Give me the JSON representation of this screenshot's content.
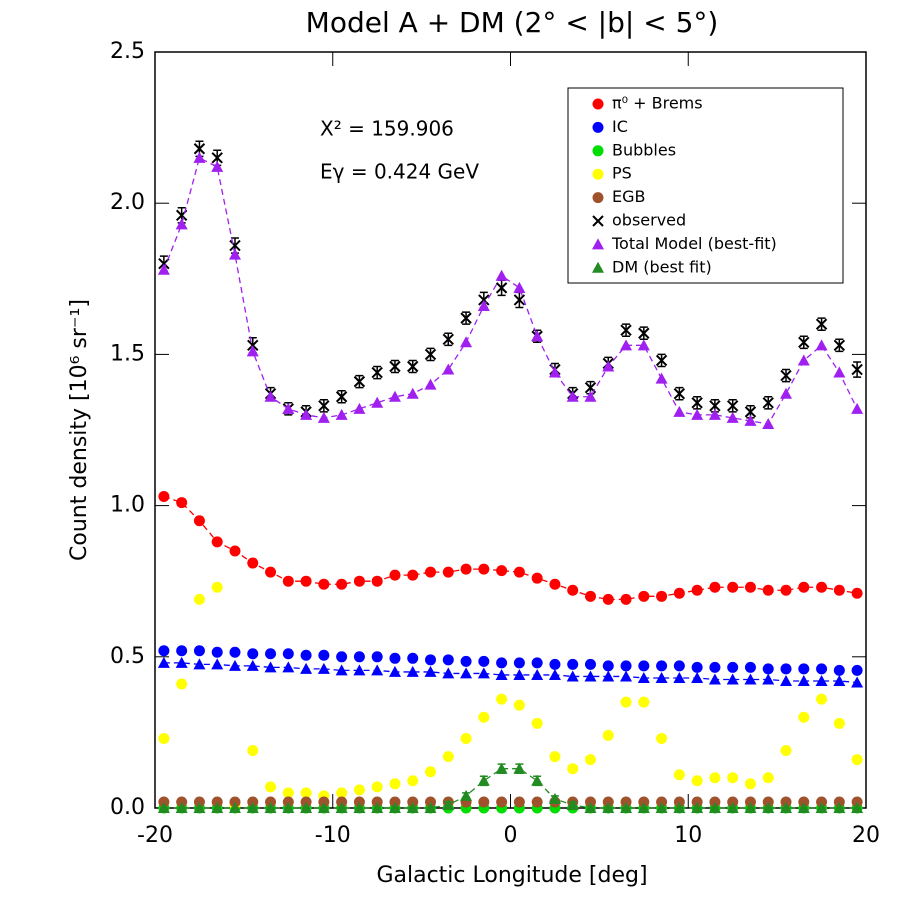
{
  "chart_data": {
    "type": "scatter",
    "title": "Model A + DM (2° < |b| < 5°)",
    "x_label": "Galactic Longitude [deg]",
    "y_label": "Count density  [10⁶ sr⁻¹]",
    "annotations": [
      "X² = 159.906",
      "Eγ = 0.424 GeV"
    ],
    "xlim": [
      -20,
      20
    ],
    "ylim": [
      0,
      2.5
    ],
    "xticks": [
      -20,
      -10,
      0,
      10,
      20
    ],
    "yticks": [
      {
        "value": 0,
        "label": "0.0"
      },
      0.5,
      {
        "value": 1,
        "label": "1.0"
      },
      1.5,
      {
        "value": 2,
        "label": "2.0"
      },
      2.5
    ],
    "legend": "upper right",
    "x": [
      -19.5,
      -18.5,
      -17.5,
      -16.5,
      -15.5,
      -14.5,
      -13.5,
      -12.5,
      -11.5,
      -10.5,
      -9.5,
      -8.5,
      -7.5,
      -6.5,
      -5.5,
      -4.5,
      -3.5,
      -2.5,
      -1.5,
      -0.5,
      0.5,
      1.5,
      2.5,
      3.5,
      4.5,
      5.5,
      6.5,
      7.5,
      8.5,
      9.5,
      10.5,
      11.5,
      12.5,
      13.5,
      14.5,
      15.5,
      16.5,
      17.5,
      18.5,
      19.5
    ],
    "series": [
      {
        "name": "π⁰ + Brems",
        "color": "#ff0000",
        "marker": "circle",
        "line": "dashed",
        "values": [
          1.03,
          1.01,
          0.95,
          0.88,
          0.85,
          0.81,
          0.78,
          0.75,
          0.75,
          0.74,
          0.74,
          0.75,
          0.75,
          0.77,
          0.77,
          0.78,
          0.78,
          0.79,
          0.79,
          0.785,
          0.78,
          0.76,
          0.74,
          0.72,
          0.7,
          0.69,
          0.69,
          0.7,
          0.7,
          0.71,
          0.72,
          0.73,
          0.73,
          0.73,
          0.72,
          0.72,
          0.73,
          0.73,
          0.72,
          0.71
        ],
        "errors": [
          0.01,
          0.01,
          0.01,
          0.01,
          0.01,
          0.01,
          0.01,
          0.01,
          0.01,
          0.01,
          0.01,
          0.01,
          0.01,
          0.01,
          0.01,
          0.01,
          0.01,
          0.01,
          0.01,
          0.01,
          0.01,
          0.01,
          0.01,
          0.01,
          0.01,
          0.01,
          0.01,
          0.01,
          0.01,
          0.01,
          0.01,
          0.01,
          0.01,
          0.01,
          0.01,
          0.01,
          0.01,
          0.01,
          0.01,
          0.01
        ]
      },
      {
        "name": "IC",
        "color": "#0000ff",
        "marker": "circle",
        "values": [
          0.52,
          0.52,
          0.52,
          0.515,
          0.515,
          0.51,
          0.51,
          0.51,
          0.505,
          0.505,
          0.5,
          0.5,
          0.5,
          0.495,
          0.495,
          0.49,
          0.49,
          0.485,
          0.485,
          0.48,
          0.48,
          0.48,
          0.475,
          0.475,
          0.475,
          0.47,
          0.47,
          0.47,
          0.47,
          0.47,
          0.465,
          0.465,
          0.465,
          0.465,
          0.46,
          0.46,
          0.46,
          0.46,
          0.455,
          0.455
        ]
      },
      {
        "color": "#0000ff",
        "marker": "triangle",
        "line": "dashed",
        "values": [
          0.48,
          0.48,
          0.475,
          0.475,
          0.47,
          0.47,
          0.465,
          0.465,
          0.46,
          0.46,
          0.455,
          0.455,
          0.455,
          0.45,
          0.45,
          0.45,
          0.445,
          0.445,
          0.445,
          0.44,
          0.44,
          0.44,
          0.44,
          0.435,
          0.435,
          0.435,
          0.435,
          0.43,
          0.43,
          0.43,
          0.43,
          0.425,
          0.425,
          0.425,
          0.425,
          0.42,
          0.42,
          0.42,
          0.42,
          0.415
        ]
      },
      {
        "name": "Bubbles",
        "color": "#00dd00",
        "marker": "circle",
        "values": [
          0,
          0,
          0,
          0,
          0,
          0,
          0,
          0,
          0,
          0,
          0,
          0,
          0,
          0,
          0,
          0,
          0,
          0,
          0,
          0,
          0,
          0,
          0,
          0,
          0,
          0,
          0,
          0,
          0,
          0,
          0,
          0,
          0,
          0,
          0,
          0,
          0,
          0,
          0,
          0
        ]
      },
      {
        "name": "PS",
        "color": "#ffff00",
        "marker": "circle",
        "values": [
          0.23,
          0.41,
          0.69,
          0.73,
          0.01,
          0.19,
          0.07,
          0.05,
          0.05,
          0.04,
          0.05,
          0.06,
          0.07,
          0.08,
          0.09,
          0.12,
          0.17,
          0.23,
          0.3,
          0.36,
          0.34,
          0.28,
          0.17,
          0.13,
          0.16,
          0.24,
          0.35,
          0.35,
          0.23,
          0.11,
          0.09,
          0.1,
          0.1,
          0.08,
          0.1,
          0.19,
          0.3,
          0.36,
          0.28,
          0.16
        ]
      },
      {
        "name": "EGB",
        "color": "#a0522d",
        "marker": "circle",
        "values": [
          0.02,
          0.02,
          0.02,
          0.02,
          0.02,
          0.02,
          0.02,
          0.02,
          0.02,
          0.02,
          0.02,
          0.02,
          0.02,
          0.02,
          0.02,
          0.02,
          0.02,
          0.02,
          0.02,
          0.02,
          0.02,
          0.02,
          0.02,
          0.02,
          0.02,
          0.02,
          0.02,
          0.02,
          0.02,
          0.02,
          0.02,
          0.02,
          0.02,
          0.02,
          0.02,
          0.02,
          0.02,
          0.02,
          0.02,
          0.02
        ]
      },
      {
        "name": "observed",
        "color": "#000000",
        "marker": "x",
        "values": [
          1.8,
          1.96,
          2.18,
          2.15,
          1.86,
          1.53,
          1.37,
          1.32,
          1.31,
          1.33,
          1.36,
          1.41,
          1.44,
          1.46,
          1.46,
          1.5,
          1.55,
          1.62,
          1.68,
          1.72,
          1.68,
          1.56,
          1.45,
          1.37,
          1.39,
          1.47,
          1.58,
          1.57,
          1.48,
          1.37,
          1.34,
          1.33,
          1.33,
          1.31,
          1.34,
          1.43,
          1.54,
          1.6,
          1.53,
          1.45
        ],
        "errors": [
          0.025,
          0.025,
          0.025,
          0.025,
          0.025,
          0.025,
          0.02,
          0.02,
          0.02,
          0.02,
          0.02,
          0.02,
          0.02,
          0.02,
          0.02,
          0.02,
          0.02,
          0.02,
          0.025,
          0.025,
          0.025,
          0.02,
          0.02,
          0.02,
          0.02,
          0.02,
          0.02,
          0.02,
          0.02,
          0.02,
          0.02,
          0.02,
          0.02,
          0.02,
          0.02,
          0.02,
          0.02,
          0.02,
          0.02,
          0.025
        ]
      },
      {
        "name": "Total Model (best-fit)",
        "color": "#a020f0",
        "marker": "triangle",
        "line": "dashed",
        "values": [
          1.78,
          1.93,
          2.15,
          2.12,
          1.83,
          1.51,
          1.36,
          1.32,
          1.3,
          1.29,
          1.3,
          1.32,
          1.34,
          1.36,
          1.37,
          1.4,
          1.45,
          1.54,
          1.66,
          1.76,
          1.72,
          1.56,
          1.44,
          1.36,
          1.36,
          1.46,
          1.53,
          1.53,
          1.42,
          1.31,
          1.3,
          1.3,
          1.29,
          1.28,
          1.27,
          1.37,
          1.48,
          1.53,
          1.44,
          1.32
        ]
      },
      {
        "name": "DM (best fit)",
        "color": "#228b22",
        "marker": "triangle",
        "line": "dashed",
        "values": [
          0,
          0,
          0,
          0,
          0,
          0,
          0,
          0,
          0,
          0,
          0,
          0,
          0,
          0,
          0,
          0,
          0.01,
          0.04,
          0.09,
          0.13,
          0.13,
          0.09,
          0.03,
          0.01,
          0,
          0,
          0,
          0,
          0,
          0,
          0,
          0,
          0,
          0,
          0,
          0,
          0,
          0,
          0,
          0
        ],
        "errors": [
          0,
          0,
          0,
          0,
          0,
          0,
          0,
          0,
          0,
          0,
          0,
          0,
          0,
          0,
          0,
          0,
          0.01,
          0.01,
          0.015,
          0.015,
          0.015,
          0.015,
          0.01,
          0.01,
          0,
          0,
          0,
          0,
          0,
          0,
          0,
          0,
          0,
          0,
          0,
          0,
          0,
          0,
          0,
          0
        ]
      }
    ]
  }
}
